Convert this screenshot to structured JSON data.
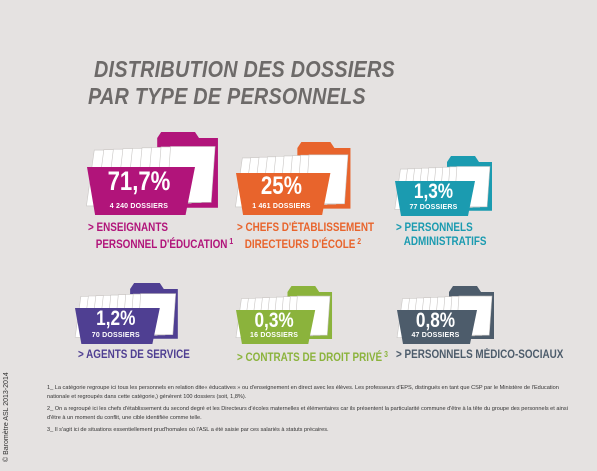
{
  "title": {
    "line1": "DISTRIBUTION DES DOSSIERS",
    "line2": "PAR TYPE DE PERSONNELS"
  },
  "credit": "© Baromètre ASL 2013-2014",
  "colors": {
    "background": "#e5e2e1",
    "title": "#6d6a69",
    "folder_pages": "#ffffff"
  },
  "chart_data": {
    "type": "other",
    "title": "DISTRIBUTION DES DOSSIERS PAR TYPE DE PERSONNELS",
    "items": [
      {
        "percent_label": "71,7%",
        "value": 71.7,
        "count_label": "4 240 DOSSIERS",
        "dossiers": 4240,
        "category_line1": "> ENSEIGNANTS",
        "category_line2": "PERSONNEL D'ÉDUCATION",
        "note": "1",
        "color": "#b1147a",
        "cat_color": "#b1147a"
      },
      {
        "percent_label": "25%",
        "value": 25,
        "count_label": "1 461 DOSSIERS",
        "dossiers": 1461,
        "category_line1": "> CHEFS D'ÉTABLISSEMENT",
        "category_line2": "DIRECTEURS D'ÉCOLE",
        "note": "2",
        "color": "#e8642c",
        "cat_color": "#e8642c"
      },
      {
        "percent_label": "1,3%",
        "value": 1.3,
        "count_label": "77 DOSSIERS",
        "dossiers": 77,
        "category_line1": "> PERSONNELS",
        "category_line2": "ADMINISTRATIFS",
        "note": "",
        "color": "#1b9bb0",
        "cat_color": "#1b9bb0"
      },
      {
        "percent_label": "1,2%",
        "value": 1.2,
        "count_label": "70 DOSSIERS",
        "dossiers": 70,
        "category_line1": "> AGENTS DE SERVICE",
        "category_line2": "",
        "note": "",
        "color": "#4f3f92",
        "cat_color": "#4f3f92"
      },
      {
        "percent_label": "0,3%",
        "value": 0.3,
        "count_label": "16 DOSSIERS",
        "dossiers": 16,
        "category_line1": "> CONTRATS DE DROIT PRIVÉ",
        "category_line2": "",
        "note": "3",
        "color": "#8bb33c",
        "cat_color": "#8bb33c"
      },
      {
        "percent_label": "0,8%",
        "value": 0.8,
        "count_label": "47 DOSSIERS",
        "dossiers": 47,
        "category_line1": "> PERSONNELS MÉDICO-SOCIAUX",
        "category_line2": "",
        "note": "",
        "color": "#4d5c6b",
        "cat_color": "#4d5c6b"
      }
    ]
  },
  "notes": [
    "1_ La catégorie regroupe ici tous les personnels en relation dite« éducatives » ou d'enseignement en direct avec les élèves. Les professeurs d'EPS, distingués en tant que CSP par le Ministère de l'Education nationale et regroupés dans cette catégorie,) génèrent 100 dossiers (soit, 1,8%).",
    "2_ On a regroupé ici les chefs d'établissement du second degré et les Directeurs d'écoles maternelles et élémentaires car ils présentent la particularité commune d'être à la tête du groupe des personnels et ainsi d'être à un moment du conflit, une cible identifiée comme telle.",
    "3_ Il s'agit ici de situations essentiellement prud'homales où l'ASL a été saisie par ces salariés à statuts précaires."
  ]
}
